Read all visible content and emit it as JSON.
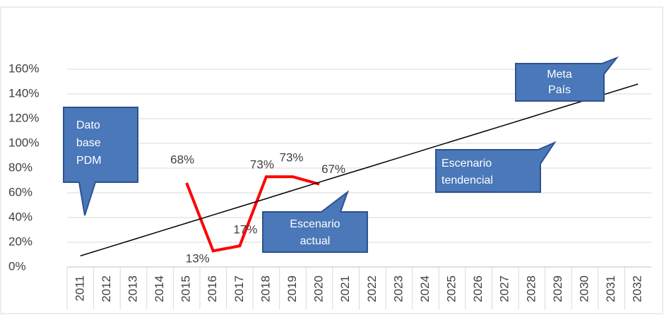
{
  "chart_data": {
    "type": "line",
    "categories": [
      "2011",
      "2012",
      "2013",
      "2014",
      "2015",
      "2016",
      "2017",
      "2018",
      "2019",
      "2020",
      "2021",
      "2022",
      "2023",
      "2024",
      "2025",
      "2026",
      "2027",
      "2028",
      "2029",
      "2030",
      "2031",
      "2032"
    ],
    "series": [
      {
        "color": "#ff0000",
        "values": [
          null,
          null,
          null,
          null,
          68,
          13,
          17,
          73,
          73,
          67,
          null,
          null,
          null,
          null,
          null,
          null,
          null,
          null,
          null,
          null,
          null,
          null
        ],
        "value_labels": [
          null,
          null,
          null,
          null,
          "68%",
          "13%",
          "17%",
          "73%",
          "73%",
          "67%",
          null,
          null,
          null,
          null,
          null,
          null,
          null,
          null,
          null,
          null,
          null,
          null
        ]
      },
      {
        "color": "#000000",
        "values": [
          9,
          15.6,
          22.2,
          28.9,
          35.5,
          42.1,
          48.7,
          55.3,
          62.0,
          68.6,
          75.2,
          81.8,
          88.4,
          95.1,
          101.7,
          108.3,
          114.9,
          121.5,
          128.2,
          134.8,
          141.4,
          148
        ]
      }
    ],
    "ylim": [
      0,
      160
    ],
    "yticks": [
      {
        "value": 0,
        "label": "0%"
      },
      {
        "value": 20,
        "label": "20%"
      },
      {
        "value": 40,
        "label": "40%"
      },
      {
        "value": 60,
        "label": "60%"
      },
      {
        "value": 80,
        "label": "80%"
      },
      {
        "value": 100,
        "label": "100%"
      },
      {
        "value": 120,
        "label": "120%"
      },
      {
        "value": 140,
        "label": "140%"
      },
      {
        "value": 160,
        "label": "160%"
      }
    ],
    "grid": true,
    "annotations": [
      {
        "lines": [
          "Dato",
          "base",
          "PDM"
        ]
      },
      {
        "lines": [
          "Meta",
          "País"
        ]
      },
      {
        "lines": [
          "Escenario",
          "tendencial"
        ]
      },
      {
        "lines": [
          "Escenario",
          "actual"
        ]
      }
    ]
  }
}
